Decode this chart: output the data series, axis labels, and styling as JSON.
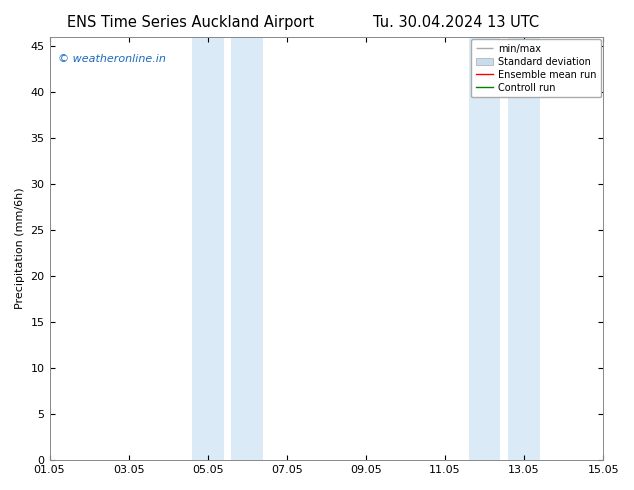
{
  "title_left": "ENS Time Series Auckland Airport",
  "title_right": "Tu. 30.04.2024 13 UTC",
  "ylabel": "Precipitation (mm/6h)",
  "xlim": [
    0,
    14
  ],
  "ylim": [
    0,
    46
  ],
  "yticks": [
    0,
    5,
    10,
    15,
    20,
    25,
    30,
    35,
    40,
    45
  ],
  "xtick_labels": [
    "01.05",
    "03.05",
    "05.05",
    "07.05",
    "09.05",
    "11.05",
    "13.05",
    "15.05"
  ],
  "xtick_positions": [
    0,
    2,
    4,
    6,
    8,
    10,
    12,
    14
  ],
  "shaded_bands": [
    {
      "xmin": 3.6,
      "xmax": 4.4,
      "color": "#daeaf7"
    },
    {
      "xmin": 4.6,
      "xmax": 5.4,
      "color": "#daeaf7"
    },
    {
      "xmin": 10.6,
      "xmax": 11.4,
      "color": "#daeaf7"
    },
    {
      "xmin": 11.6,
      "xmax": 12.4,
      "color": "#daeaf7"
    }
  ],
  "watermark": "© weatheronline.in",
  "watermark_color": "#1a6abf",
  "bg_color": "#ffffff",
  "plot_bg_color": "#ffffff",
  "legend_labels": [
    "min/max",
    "Standard deviation",
    "Ensemble mean run",
    "Controll run"
  ],
  "legend_colors_line": [
    "#aaaaaa",
    "#c8dced",
    "#ff0000",
    "#008000"
  ],
  "tick_direction": "in",
  "font_size": 8,
  "title_font_size": 10.5
}
